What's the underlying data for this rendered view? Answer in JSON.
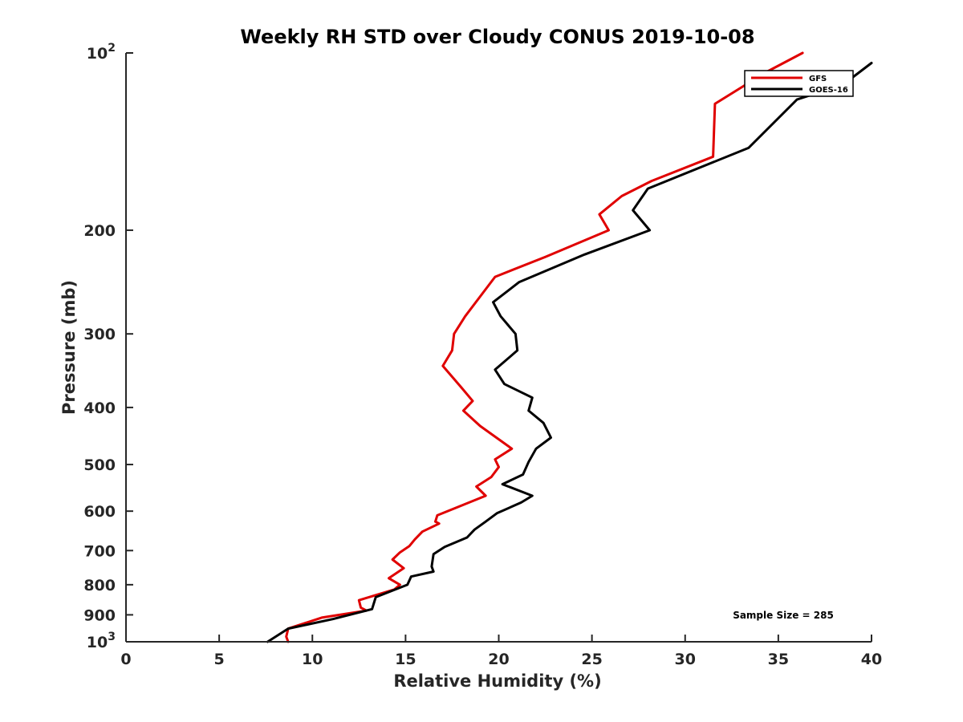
{
  "chart_data": {
    "type": "line",
    "title": "Weekly RH STD over Cloudy CONUS 2019-10-08",
    "xlabel": "Relative Humidity (%)",
    "ylabel": "Pressure (mb)",
    "xlim": [
      0,
      40
    ],
    "ylim": [
      100,
      1000
    ],
    "y_scale": "log",
    "y_reversed": true,
    "xticks": [
      0,
      5,
      10,
      15,
      20,
      25,
      30,
      35,
      40
    ],
    "xtick_labels": [
      "0",
      "5",
      "10",
      "15",
      "20",
      "25",
      "30",
      "35",
      "40"
    ],
    "yticks": [
      100,
      200,
      300,
      400,
      500,
      600,
      700,
      800,
      900,
      1000
    ],
    "ytick_labels": [
      {
        "base": "10",
        "exp": "2"
      },
      {
        "base": "200",
        "exp": ""
      },
      {
        "base": "300",
        "exp": ""
      },
      {
        "base": "400",
        "exp": ""
      },
      {
        "base": "500",
        "exp": ""
      },
      {
        "base": "600",
        "exp": ""
      },
      {
        "base": "700",
        "exp": ""
      },
      {
        "base": "800",
        "exp": ""
      },
      {
        "base": "900",
        "exp": ""
      },
      {
        "base": "10",
        "exp": "3"
      }
    ],
    "grid": false,
    "legend_position": "top-right",
    "series": [
      {
        "name": "GFS",
        "color": "#e00000",
        "points": [
          [
            36.3,
            100
          ],
          [
            34.3,
            108
          ],
          [
            31.6,
            122
          ],
          [
            31.5,
            150
          ],
          [
            28.2,
            165
          ],
          [
            26.6,
            175
          ],
          [
            25.4,
            188
          ],
          [
            25.9,
            200
          ],
          [
            22.5,
            222
          ],
          [
            19.8,
            240
          ],
          [
            18.2,
            280
          ],
          [
            17.6,
            300
          ],
          [
            17.5,
            320
          ],
          [
            17.0,
            340
          ],
          [
            18.0,
            370
          ],
          [
            18.6,
            390
          ],
          [
            18.1,
            405
          ],
          [
            19.0,
            430
          ],
          [
            20.7,
            470
          ],
          [
            19.8,
            490
          ],
          [
            20.0,
            505
          ],
          [
            19.6,
            525
          ],
          [
            18.8,
            545
          ],
          [
            19.3,
            565
          ],
          [
            16.7,
            610
          ],
          [
            16.6,
            625
          ],
          [
            16.8,
            630
          ],
          [
            15.9,
            650
          ],
          [
            15.5,
            670
          ],
          [
            15.2,
            688
          ],
          [
            14.7,
            705
          ],
          [
            14.3,
            725
          ],
          [
            14.9,
            750
          ],
          [
            14.1,
            780
          ],
          [
            14.7,
            800
          ],
          [
            14.4,
            815
          ],
          [
            12.5,
            850
          ],
          [
            12.6,
            875
          ],
          [
            12.9,
            885
          ],
          [
            10.5,
            910
          ],
          [
            8.7,
            950
          ],
          [
            8.6,
            980
          ],
          [
            8.7,
            1000
          ]
        ]
      },
      {
        "name": "GOES-16",
        "color": "#000000",
        "points": [
          [
            40.0,
            104
          ],
          [
            38.5,
            113
          ],
          [
            36.0,
            120
          ],
          [
            33.4,
            145
          ],
          [
            28.0,
            170
          ],
          [
            27.2,
            185
          ],
          [
            28.1,
            200
          ],
          [
            24.6,
            220
          ],
          [
            21.1,
            245
          ],
          [
            19.7,
            265
          ],
          [
            20.1,
            280
          ],
          [
            20.9,
            300
          ],
          [
            21.0,
            320
          ],
          [
            19.8,
            345
          ],
          [
            20.3,
            365
          ],
          [
            21.8,
            385
          ],
          [
            21.6,
            405
          ],
          [
            22.4,
            425
          ],
          [
            22.8,
            450
          ],
          [
            22.0,
            470
          ],
          [
            21.6,
            495
          ],
          [
            21.3,
            520
          ],
          [
            20.2,
            540
          ],
          [
            21.8,
            565
          ],
          [
            21.2,
            580
          ],
          [
            19.9,
            605
          ],
          [
            19.3,
            625
          ],
          [
            18.7,
            645
          ],
          [
            18.3,
            665
          ],
          [
            17.1,
            690
          ],
          [
            16.5,
            710
          ],
          [
            16.4,
            745
          ],
          [
            16.5,
            760
          ],
          [
            15.3,
            775
          ],
          [
            15.1,
            800
          ],
          [
            13.4,
            840
          ],
          [
            13.2,
            880
          ],
          [
            11.1,
            915
          ],
          [
            8.7,
            950
          ],
          [
            7.6,
            1000
          ]
        ]
      }
    ],
    "annotation": "Sample Size = 285"
  }
}
